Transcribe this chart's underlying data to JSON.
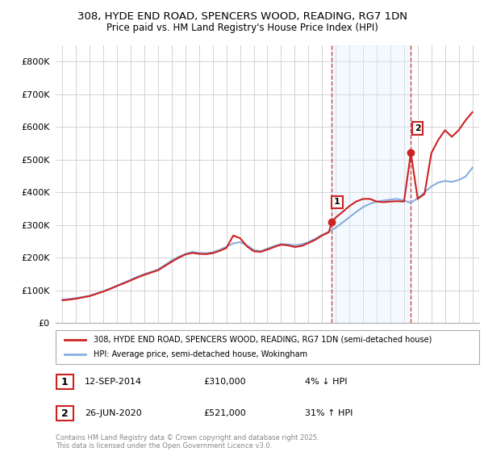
{
  "title": "308, HYDE END ROAD, SPENCERS WOOD, READING, RG7 1DN",
  "subtitle": "Price paid vs. HM Land Registry's House Price Index (HPI)",
  "legend_label_red": "308, HYDE END ROAD, SPENCERS WOOD, READING, RG7 1DN (semi-detached house)",
  "legend_label_blue": "HPI: Average price, semi-detached house, Wokingham",
  "footer": "Contains HM Land Registry data © Crown copyright and database right 2025.\nThis data is licensed under the Open Government Licence v3.0.",
  "annotation1_date": "12-SEP-2014",
  "annotation1_price": "£310,000",
  "annotation1_change": "4% ↓ HPI",
  "annotation1_year": 2014.7,
  "annotation1_value": 310000,
  "annotation2_date": "26-JUN-2020",
  "annotation2_price": "£521,000",
  "annotation2_change": "31% ↑ HPI",
  "annotation2_year": 2020.5,
  "annotation2_value": 521000,
  "ylim": [
    0,
    850000
  ],
  "xlim_start": 1994.5,
  "xlim_end": 2025.5,
  "color_red": "#cc2222",
  "color_blue": "#88aedd",
  "color_vline": "#cc4444",
  "shade_color": "#ddeeff",
  "background_color": "#ffffff",
  "grid_color": "#cccccc",
  "hpi_years": [
    1995.0,
    1995.5,
    1996.0,
    1996.5,
    1997.0,
    1997.5,
    1998.0,
    1998.5,
    1999.0,
    1999.5,
    2000.0,
    2000.5,
    2001.0,
    2001.5,
    2002.0,
    2002.5,
    2003.0,
    2003.5,
    2004.0,
    2004.5,
    2005.0,
    2005.5,
    2006.0,
    2006.5,
    2007.0,
    2007.5,
    2008.0,
    2008.5,
    2009.0,
    2009.5,
    2010.0,
    2010.5,
    2011.0,
    2011.5,
    2012.0,
    2012.5,
    2013.0,
    2013.5,
    2014.0,
    2014.5,
    2015.0,
    2015.5,
    2016.0,
    2016.5,
    2017.0,
    2017.5,
    2018.0,
    2018.5,
    2019.0,
    2019.5,
    2020.0,
    2020.5,
    2021.0,
    2021.5,
    2022.0,
    2022.5,
    2023.0,
    2023.5,
    2024.0,
    2024.5,
    2025.0
  ],
  "hpi_values": [
    72000,
    74000,
    77000,
    80000,
    84000,
    91000,
    98000,
    106000,
    115000,
    124000,
    133000,
    142000,
    150000,
    157000,
    164000,
    178000,
    192000,
    203000,
    212000,
    218000,
    215000,
    214000,
    217000,
    224000,
    234000,
    244000,
    248000,
    238000,
    224000,
    220000,
    228000,
    236000,
    242000,
    241000,
    238000,
    241000,
    248000,
    258000,
    270000,
    280000,
    292000,
    308000,
    324000,
    340000,
    355000,
    365000,
    372000,
    375000,
    378000,
    380000,
    375000,
    368000,
    382000,
    400000,
    418000,
    430000,
    435000,
    432000,
    438000,
    448000,
    475000
  ],
  "price_years": [
    1995.0,
    1995.5,
    1996.0,
    1996.5,
    1997.0,
    1997.5,
    1998.0,
    1998.5,
    1999.0,
    1999.5,
    2000.0,
    2000.5,
    2001.0,
    2001.5,
    2002.0,
    2002.5,
    2003.0,
    2003.5,
    2004.0,
    2004.5,
    2005.0,
    2005.5,
    2006.0,
    2006.5,
    2007.0,
    2007.5,
    2008.0,
    2008.5,
    2009.0,
    2009.5,
    2010.0,
    2010.5,
    2011.0,
    2011.5,
    2012.0,
    2012.5,
    2013.0,
    2013.5,
    2014.0,
    2014.5,
    2014.7,
    2015.0,
    2015.5,
    2016.0,
    2016.5,
    2017.0,
    2017.5,
    2018.0,
    2018.5,
    2019.0,
    2019.5,
    2020.0,
    2020.5,
    2021.0,
    2021.5,
    2022.0,
    2022.5,
    2023.0,
    2023.5,
    2024.0,
    2024.5,
    2025.0
  ],
  "price_values": [
    70000,
    72000,
    75000,
    79000,
    83000,
    90000,
    97000,
    105000,
    114000,
    122000,
    131000,
    140000,
    148000,
    155000,
    162000,
    175000,
    188000,
    200000,
    210000,
    215000,
    212000,
    211000,
    214000,
    221000,
    230000,
    268000,
    260000,
    235000,
    220000,
    218000,
    225000,
    233000,
    240000,
    238000,
    233000,
    236000,
    245000,
    255000,
    268000,
    278000,
    310000,
    323000,
    340000,
    358000,
    372000,
    380000,
    380000,
    372000,
    370000,
    372000,
    373000,
    372000,
    521000,
    380000,
    395000,
    520000,
    560000,
    590000,
    570000,
    590000,
    620000,
    645000
  ]
}
